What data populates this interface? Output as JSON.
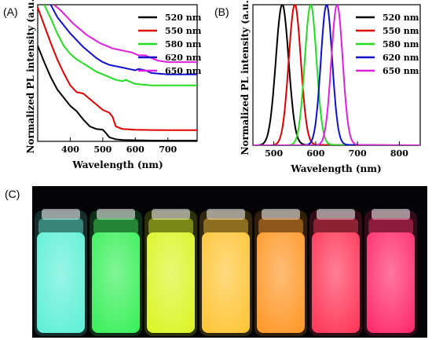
{
  "chart_data": [
    {
      "panel": "(A)",
      "type": "line",
      "xlabel": "Wavelength (nm)",
      "ylabel": "Normalized PL intensity (a.u.)",
      "xlim": [
        300,
        790
      ],
      "ylim": [
        0,
        1
      ],
      "x_ticks": [
        400,
        500,
        600,
        700
      ],
      "legend_position": "top-right",
      "series": [
        {
          "name": "520 nm",
          "color": "#000000",
          "x": [
            300,
            320,
            340,
            360,
            380,
            400,
            420,
            440,
            460,
            480,
            500,
            510,
            520,
            540,
            560,
            600,
            650,
            700,
            790
          ],
          "y": [
            0.7,
            0.58,
            0.47,
            0.38,
            0.32,
            0.26,
            0.22,
            0.16,
            0.11,
            0.09,
            0.085,
            0.06,
            0.03,
            0.015,
            0.01,
            0.008,
            0.006,
            0.005,
            0.005
          ]
        },
        {
          "name": "550 nm",
          "color": "#e00000",
          "x": [
            300,
            320,
            340,
            360,
            380,
            400,
            420,
            440,
            460,
            480,
            500,
            520,
            530,
            540,
            560,
            600,
            650,
            700,
            790
          ],
          "y": [
            0.98,
            0.85,
            0.72,
            0.6,
            0.5,
            0.41,
            0.36,
            0.35,
            0.31,
            0.27,
            0.23,
            0.21,
            0.18,
            0.11,
            0.09,
            0.085,
            0.083,
            0.082,
            0.082
          ]
        },
        {
          "name": "580 nm",
          "color": "#22dd22",
          "x": [
            320,
            340,
            360,
            380,
            400,
            420,
            440,
            460,
            480,
            500,
            520,
            540,
            560,
            570,
            600,
            650,
            700,
            790
          ],
          "y": [
            1.0,
            0.9,
            0.79,
            0.7,
            0.64,
            0.6,
            0.57,
            0.54,
            0.51,
            0.49,
            0.47,
            0.45,
            0.44,
            0.45,
            0.42,
            0.41,
            0.41,
            0.41
          ]
        },
        {
          "name": "620 nm",
          "color": "#1010cc",
          "x": [
            340,
            360,
            380,
            400,
            420,
            440,
            460,
            480,
            500,
            520,
            540,
            560,
            580,
            600,
            610,
            630,
            650,
            700,
            790
          ],
          "y": [
            1.0,
            0.91,
            0.85,
            0.79,
            0.74,
            0.69,
            0.65,
            0.61,
            0.58,
            0.56,
            0.55,
            0.54,
            0.53,
            0.52,
            0.53,
            0.52,
            0.5,
            0.49,
            0.49
          ]
        },
        {
          "name": "650 nm",
          "color": "#e020e0",
          "x": [
            350,
            370,
            390,
            410,
            430,
            450,
            470,
            490,
            510,
            530,
            550,
            570,
            590,
            610,
            630,
            650,
            670,
            700,
            790
          ],
          "y": [
            1.0,
            0.96,
            0.91,
            0.86,
            0.82,
            0.78,
            0.75,
            0.72,
            0.7,
            0.68,
            0.67,
            0.66,
            0.65,
            0.63,
            0.63,
            0.61,
            0.59,
            0.58,
            0.58
          ]
        }
      ]
    },
    {
      "panel": "(B)",
      "type": "line",
      "xlabel": "Wavelength (nm)",
      "ylabel": "Normalized PL intensity (a.u.)",
      "xlim": [
        450,
        850
      ],
      "ylim": [
        0,
        1
      ],
      "x_ticks": [
        500,
        600,
        700,
        800
      ],
      "legend_position": "top-right",
      "series": [
        {
          "name": "520 nm",
          "color": "#000000",
          "peak_nm": 520,
          "fwhm_nm": 36
        },
        {
          "name": "550 nm",
          "color": "#e00000",
          "peak_nm": 550,
          "fwhm_nm": 34
        },
        {
          "name": "580 nm",
          "color": "#22dd22",
          "peak_nm": 588,
          "fwhm_nm": 33
        },
        {
          "name": "620 nm",
          "color": "#1010cc",
          "peak_nm": 626,
          "fwhm_nm": 32
        },
        {
          "name": "650 nm",
          "color": "#e020e0",
          "peak_nm": 651,
          "fwhm_nm": 32
        }
      ]
    }
  ],
  "panel_c": {
    "label": "(C)",
    "vial_colors": [
      "#62f0d8",
      "#3ef05e",
      "#dcf52a",
      "#ffc63a",
      "#ff9a2c",
      "#ff3a5c",
      "#ff2f6e"
    ]
  }
}
